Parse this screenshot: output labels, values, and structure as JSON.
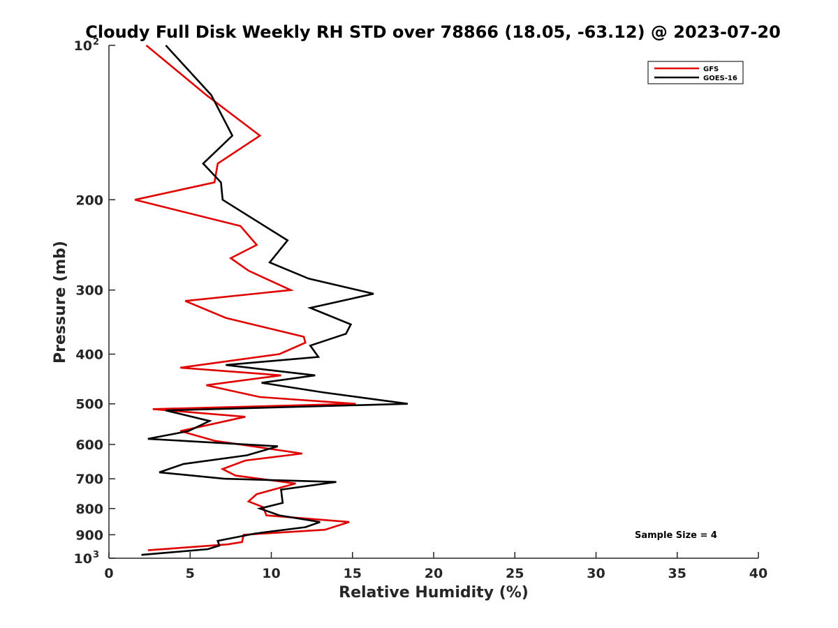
{
  "chart_data": {
    "type": "line",
    "title": "Cloudy Full Disk Weekly RH STD over 78866 (18.05, -63.12) @ 2023-07-20",
    "xlabel": "Relative Humidity (%)",
    "ylabel": "Pressure (mb)",
    "xlim": [
      0,
      40
    ],
    "ylim": [
      100,
      1000
    ],
    "yscale": "log",
    "y_reversed": true,
    "x_ticks": [
      {
        "value": 0,
        "label": "0"
      },
      {
        "value": 5,
        "label": "5"
      },
      {
        "value": 10,
        "label": "10"
      },
      {
        "value": 15,
        "label": "15"
      },
      {
        "value": 20,
        "label": "20"
      },
      {
        "value": 25,
        "label": "25"
      },
      {
        "value": 30,
        "label": "30"
      },
      {
        "value": 35,
        "label": "35"
      },
      {
        "value": 40,
        "label": "40"
      }
    ],
    "y_ticks": [
      {
        "value": 100,
        "label": "10",
        "exponent": "2"
      },
      {
        "value": 200,
        "label": "200"
      },
      {
        "value": 300,
        "label": "300"
      },
      {
        "value": 400,
        "label": "400"
      },
      {
        "value": 500,
        "label": "500"
      },
      {
        "value": 600,
        "label": "600"
      },
      {
        "value": 700,
        "label": "700"
      },
      {
        "value": 800,
        "label": "800"
      },
      {
        "value": 900,
        "label": "900"
      },
      {
        "value": 1000,
        "label": "10",
        "exponent": "3"
      }
    ],
    "grid": false,
    "legend_position": "top-right",
    "series": [
      {
        "name": "GFS",
        "color": "#e00000",
        "rh": [
          2.3,
          6.0,
          9.3,
          6.7,
          6.5,
          1.6,
          8.1,
          9.1,
          7.5,
          8.6,
          11.2,
          4.7,
          7.2,
          12.0,
          12.1,
          10.5,
          4.4,
          10.6,
          6.0,
          9.3,
          15.2,
          2.7,
          8.4,
          4.4,
          6.5,
          11.9,
          8.4,
          7.0,
          7.8,
          11.5,
          9.1,
          8.6,
          9.5,
          9.7,
          14.8,
          13.3,
          8.3,
          8.2,
          7.3,
          2.4
        ],
        "pressure": [
          100,
          125,
          150,
          170,
          185,
          200,
          225,
          245,
          260,
          275,
          300,
          315,
          340,
          370,
          380,
          400,
          425,
          440,
          460,
          485,
          500,
          512,
          530,
          565,
          590,
          625,
          645,
          670,
          690,
          715,
          750,
          775,
          795,
          825,
          850,
          880,
          900,
          930,
          940,
          965
        ]
      },
      {
        "name": "GOES-16",
        "color": "#000000",
        "rh": [
          3.5,
          6.3,
          7.6,
          5.8,
          6.9,
          7.0,
          11.0,
          9.9,
          12.3,
          16.3,
          12.4,
          14.9,
          14.6,
          12.4,
          12.9,
          7.2,
          12.7,
          9.4,
          13.2,
          18.4,
          3.5,
          6.2,
          4.9,
          2.4,
          10.4,
          8.5,
          4.6,
          3.1,
          7.1,
          14.0,
          10.6,
          10.7,
          9.3,
          10.5,
          13.0,
          12.1,
          9.0,
          6.7,
          6.8,
          6.1,
          2.0
        ],
        "pressure": [
          100,
          125,
          150,
          170,
          185,
          200,
          240,
          265,
          285,
          305,
          325,
          350,
          365,
          385,
          405,
          420,
          440,
          455,
          475,
          500,
          515,
          540,
          565,
          585,
          605,
          630,
          655,
          680,
          700,
          710,
          735,
          780,
          800,
          825,
          850,
          870,
          895,
          925,
          945,
          960,
          985
        ]
      }
    ],
    "annotations": [
      {
        "text": "Sample Size = 4"
      }
    ]
  }
}
